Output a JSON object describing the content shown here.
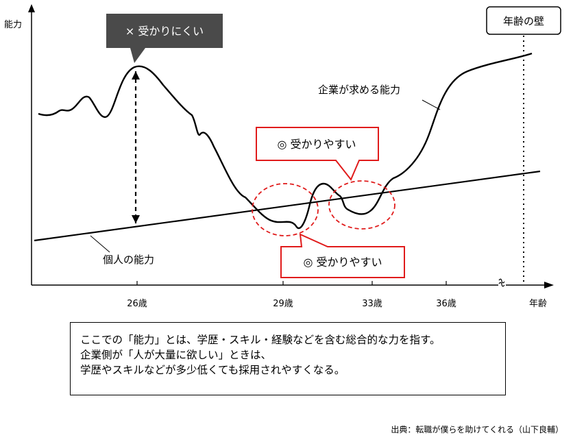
{
  "chart_data": {
    "type": "line",
    "ylabel": "能力",
    "xlabel": "年齢",
    "x_ticks": [
      "26歳",
      "29歳",
      "33歳",
      "36歳"
    ],
    "wall_label": "年齢の壁",
    "series": [
      {
        "name": "企業が求める能力",
        "color": "#000000"
      },
      {
        "name": "個人の能力",
        "color": "#000000"
      }
    ],
    "annotations": {
      "hard": "× 受かりにくい",
      "easy_upper": "◎ 受かりやすい",
      "easy_lower": "◎ 受かりやすい"
    },
    "colors": {
      "highlight": "#e01b1b",
      "dark_box": "#4a4a4a",
      "axis": "#000000"
    }
  },
  "note": {
    "lines": [
      "ここでの「能力」とは、学歴・スキル・経験などを含む総合的な力を指す。",
      "企業側が「人が大量に欲しい」ときは、",
      "学歴やスキルなどが多少低くても採用されやすくなる。"
    ]
  },
  "source": "出典：転職が僕らを助けてくれる（山下良輔）"
}
